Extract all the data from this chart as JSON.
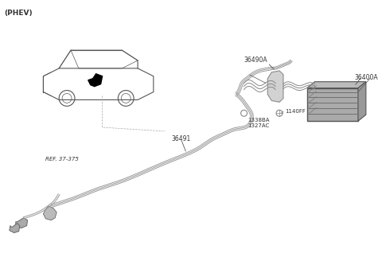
{
  "title": "(PHEV)",
  "background_color": "#ffffff",
  "line_color": "#aaaaaa",
  "dark_color": "#555555",
  "text_color": "#333333",
  "labels": {
    "phev": "(PHEV)",
    "ref": "REF. 37-375",
    "part1": "36491",
    "part2": "36490A",
    "part3": "36400A",
    "part4": "1140FF",
    "part5": "1338BA",
    "part6": "1327AC"
  },
  "figsize": [
    4.8,
    3.28
  ],
  "dpi": 100
}
